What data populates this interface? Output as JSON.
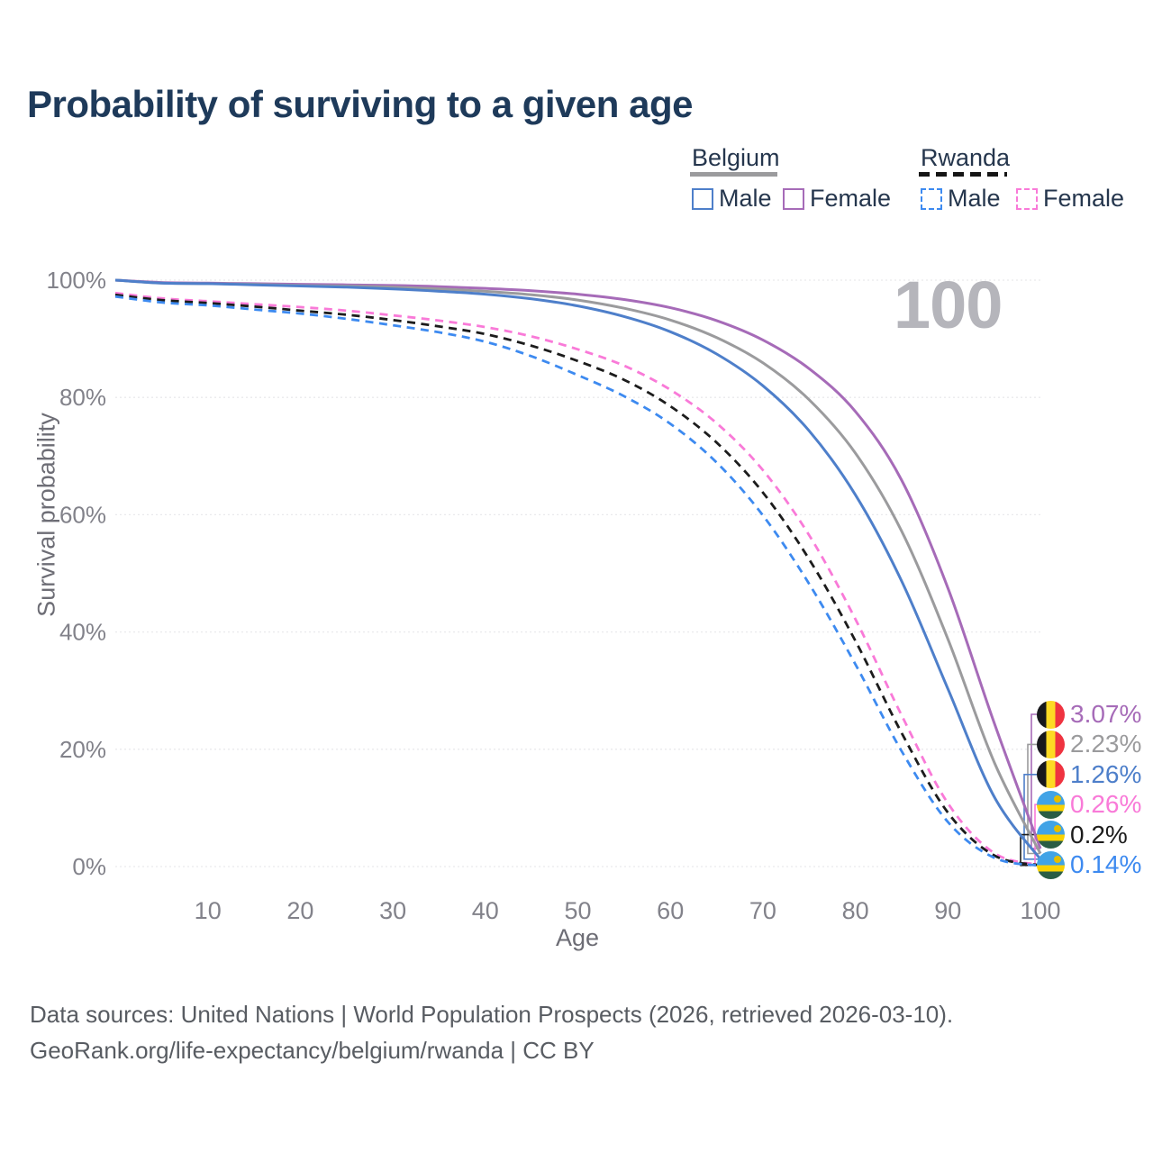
{
  "title": "Probability of surviving to a given age",
  "watermark": "100",
  "legend": {
    "groups": [
      {
        "label": "Belgium",
        "style": "solid",
        "underline_color": "#9b9b9d",
        "items": [
          {
            "label": "Male",
            "color": "#4e7fca",
            "dashed": false
          },
          {
            "label": "Female",
            "color": "#a66bb8",
            "dashed": false
          }
        ]
      },
      {
        "label": "Rwanda",
        "style": "dashed",
        "underline_color": "#151515",
        "items": [
          {
            "label": "Male",
            "color": "#3d8af0",
            "dashed": true
          },
          {
            "label": "Female",
            "color": "#f97ad8",
            "dashed": true
          }
        ]
      }
    ]
  },
  "chart_data": {
    "type": "line",
    "title": "Probability of surviving to a given age",
    "xlabel": "Age",
    "ylabel": "Survival probability",
    "xlim": [
      0,
      100
    ],
    "ylim": [
      0,
      100
    ],
    "grid": "horizontal",
    "legend_position": "top-right",
    "x_ticks": [
      10,
      20,
      30,
      40,
      50,
      60,
      70,
      80,
      90,
      100
    ],
    "y_ticks": [
      0,
      20,
      40,
      60,
      80,
      100
    ],
    "y_tick_labels": [
      "0%",
      "20%",
      "40%",
      "60%",
      "80%",
      "100%"
    ],
    "x": [
      0,
      5,
      10,
      15,
      20,
      25,
      30,
      35,
      40,
      45,
      50,
      55,
      60,
      65,
      70,
      75,
      80,
      85,
      90,
      95,
      100
    ],
    "series": [
      {
        "name": "Belgium Female",
        "color": "#a66bb8",
        "dashed": false,
        "end_label": "3.07%",
        "values": [
          100,
          99.6,
          99.5,
          99.4,
          99.3,
          99.2,
          99.1,
          98.9,
          98.6,
          98.2,
          97.6,
          96.7,
          95.3,
          93.1,
          89.8,
          84.9,
          77.6,
          65.9,
          47.5,
          24.5,
          3.07
        ]
      },
      {
        "name": "Belgium Both sexes",
        "color": "#9b9b9d",
        "dashed": false,
        "end_label": "2.23%",
        "values": [
          100,
          99.5,
          99.4,
          99.3,
          99.1,
          99.0,
          98.8,
          98.5,
          98.1,
          97.5,
          96.6,
          95.2,
          93.2,
          90.2,
          85.9,
          79.6,
          70.5,
          57.2,
          38.8,
          17.8,
          2.23
        ]
      },
      {
        "name": "Belgium Male",
        "color": "#4e7fca",
        "dashed": false,
        "end_label": "1.26%",
        "values": [
          100,
          99.5,
          99.4,
          99.2,
          99.0,
          98.8,
          98.5,
          98.1,
          97.6,
          96.8,
          95.6,
          93.8,
          91.2,
          87.4,
          82.0,
          74.3,
          63.4,
          48.7,
          30.3,
          11.9,
          1.26
        ]
      },
      {
        "name": "Rwanda Female",
        "color": "#f97ad8",
        "dashed": true,
        "end_label": "0.26%",
        "values": [
          97.8,
          96.9,
          96.4,
          95.9,
          95.4,
          94.8,
          94.0,
          93.1,
          92.0,
          90.4,
          88.2,
          85.4,
          81.3,
          75.6,
          67.6,
          56.5,
          42.2,
          25.8,
          10.8,
          2.3,
          0.26
        ]
      },
      {
        "name": "Rwanda Both sexes",
        "color": "#1c1c1c",
        "dashed": true,
        "end_label": "0.2%",
        "values": [
          97.5,
          96.6,
          96.1,
          95.5,
          94.8,
          94.1,
          93.2,
          92.1,
          90.8,
          88.8,
          86.2,
          83.0,
          78.5,
          72.3,
          63.8,
          52.4,
          38.5,
          22.8,
          9.2,
          1.9,
          0.2
        ]
      },
      {
        "name": "Rwanda Male",
        "color": "#3d8af0",
        "dashed": true,
        "end_label": "0.14%",
        "values": [
          97.2,
          96.2,
          95.7,
          95.0,
          94.3,
          93.4,
          92.3,
          91.1,
          89.5,
          87.0,
          83.8,
          80.2,
          75.5,
          68.9,
          59.9,
          48.2,
          34.5,
          19.7,
          7.6,
          1.5,
          0.14
        ]
      }
    ]
  },
  "end_labels": [
    {
      "value": "3.07%",
      "flag": "belgium",
      "color": "#a66bb8"
    },
    {
      "value": "2.23%",
      "flag": "belgium",
      "color": "#9b9b9d"
    },
    {
      "value": "1.26%",
      "flag": "belgium",
      "color": "#4e7fca"
    },
    {
      "value": "0.26%",
      "flag": "rwanda",
      "color": "#f97ad8"
    },
    {
      "value": "0.2%",
      "flag": "rwanda",
      "color": "#1c1c1c"
    },
    {
      "value": "0.14%",
      "flag": "rwanda",
      "color": "#3d8af0"
    }
  ],
  "flag_colors": {
    "belgium": [
      "#17181c",
      "#fdda24",
      "#ef3340"
    ],
    "rwanda": {
      "blue": "#41a3e6",
      "yellow": "#fad201",
      "green": "#2a5d44",
      "sun": "#e5be01"
    }
  },
  "footer": {
    "line1": "Data sources: United Nations | World Population Prospects (2026, retrieved 2026-03-10).",
    "line2": "GeoRank.org/life-expectancy/belgium/rwanda | CC BY"
  }
}
